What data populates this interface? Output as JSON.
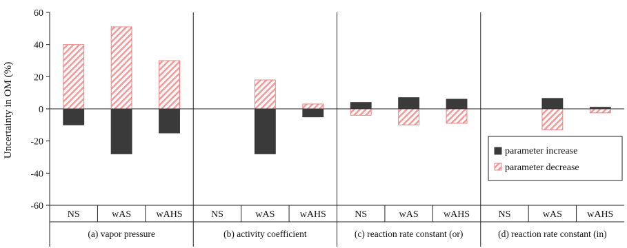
{
  "chart_data": {
    "type": "bar",
    "ylabel": "Uncertainty in OM (%)",
    "ylim": [
      -60,
      60
    ],
    "yticks": [
      60,
      40,
      20,
      0,
      -20,
      -40,
      -60
    ],
    "grid": false,
    "legend_position": "bottom-right",
    "groups": [
      {
        "label": "(a) vapor pressure",
        "categories": [
          "NS",
          "wAS",
          "wAHS"
        ]
      },
      {
        "label": "(b) activity coefficient",
        "categories": [
          "NS",
          "wAS",
          "wAHS"
        ]
      },
      {
        "label": "(c) reaction rate constant (or)",
        "categories": [
          "NS",
          "wAS",
          "wAHS"
        ]
      },
      {
        "label": "(d) reaction rate constant (in)",
        "categories": [
          "NS",
          "wAS",
          "wAHS"
        ]
      }
    ],
    "series": [
      {
        "name": "parameter increase",
        "color": "#3a3a3a",
        "pattern": "solid",
        "values": [
          -10,
          -28,
          -15,
          0,
          -28,
          -5,
          4,
          7,
          6,
          0,
          6.5,
          1
        ]
      },
      {
        "name": "parameter decrease",
        "color": "#f08080",
        "pattern": "hatched",
        "values": [
          40,
          51,
          30,
          0,
          18,
          3,
          -4,
          -10,
          -9,
          0,
          -13,
          -2.5
        ]
      }
    ]
  }
}
